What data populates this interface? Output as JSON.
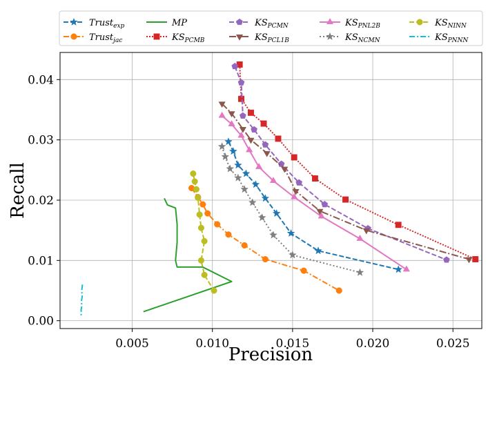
{
  "chart_data": {
    "type": "line",
    "title": "",
    "xlabel": "Precision",
    "ylabel": "Recall",
    "xlim": [
      0.0005,
      0.0268
    ],
    "ylim": [
      -0.0013,
      0.0445
    ],
    "xticks": [
      0.005,
      0.01,
      0.015,
      0.02,
      0.025
    ],
    "xtick_labels": [
      "0.005",
      "0.010",
      "0.015",
      "0.020",
      "0.025"
    ],
    "yticks": [
      0.0,
      0.01,
      0.02,
      0.03,
      0.04
    ],
    "ytick_labels": [
      "0.00",
      "0.01",
      "0.02",
      "0.03",
      "0.04"
    ],
    "grid": true,
    "legend_position": "top",
    "series": [
      {
        "name": "Trust",
        "sub": "exp",
        "color": "#1f77b4",
        "marker": "star",
        "dash": "7,3",
        "x": [
          0.011,
          0.0113,
          0.0116,
          0.0121,
          0.0127,
          0.0133,
          0.014,
          0.0149,
          0.0166,
          0.0216
        ],
        "y": [
          0.0297,
          0.0281,
          0.0258,
          0.0244,
          0.0226,
          0.0203,
          0.0178,
          0.0145,
          0.0116,
          0.0085
        ]
      },
      {
        "name": "Trust",
        "sub": "jac",
        "color": "#ff7f0e",
        "marker": "circle",
        "dash": "8,3,2,3",
        "x": [
          0.0087,
          0.0091,
          0.0094,
          0.0097,
          0.0103,
          0.011,
          0.012,
          0.0133,
          0.0157,
          0.0179
        ],
        "y": [
          0.022,
          0.0205,
          0.0193,
          0.0178,
          0.016,
          0.0143,
          0.0125,
          0.0102,
          0.0083,
          0.005
        ]
      },
      {
        "name": "MP",
        "sub": "",
        "color": "#2ca02c",
        "marker": "none",
        "dash": "",
        "x": [
          0.007,
          0.0072,
          0.0077,
          0.0078,
          0.0078,
          0.0077,
          0.0078,
          0.0094,
          0.0112,
          0.0057
        ],
        "y": [
          0.0203,
          0.0192,
          0.0187,
          0.016,
          0.013,
          0.01,
          0.0089,
          0.0089,
          0.0065,
          0.0015
        ]
      },
      {
        "name": "KS",
        "sub": "PCMB",
        "color": "#d62728",
        "marker": "square",
        "dash": "2,2",
        "x": [
          0.0117,
          0.0118,
          0.0124,
          0.0132,
          0.0141,
          0.0151,
          0.0164,
          0.0183,
          0.0216,
          0.0264
        ],
        "y": [
          0.0425,
          0.0368,
          0.0345,
          0.0327,
          0.0302,
          0.0271,
          0.0236,
          0.0201,
          0.0159,
          0.0102
        ]
      },
      {
        "name": "KS",
        "sub": "PCMN",
        "color": "#9467bd",
        "marker": "pentagon",
        "dash": "7,3",
        "x": [
          0.0114,
          0.0118,
          0.0119,
          0.0126,
          0.0133,
          0.0143,
          0.0154,
          0.017,
          0.0197,
          0.0246
        ],
        "y": [
          0.0422,
          0.0395,
          0.034,
          0.0317,
          0.0292,
          0.026,
          0.0229,
          0.0193,
          0.0153,
          0.0101
        ]
      },
      {
        "name": "KS",
        "sub": "PCL1B",
        "color": "#8c564b",
        "marker": "tri-down",
        "dash": "10,3,2,3",
        "x": [
          0.0106,
          0.0112,
          0.0119,
          0.0124,
          0.0134,
          0.0145,
          0.0152,
          0.0167,
          0.0196,
          0.026
        ],
        "y": [
          0.036,
          0.0344,
          0.0318,
          0.03,
          0.0278,
          0.0252,
          0.0215,
          0.0182,
          0.015,
          0.0102
        ]
      },
      {
        "name": "KS",
        "sub": "PNL2B",
        "color": "#e377c2",
        "marker": "tri-up",
        "dash": "",
        "x": [
          0.0106,
          0.0112,
          0.0118,
          0.0123,
          0.0129,
          0.0138,
          0.0151,
          0.0168,
          0.0192,
          0.0221
        ],
        "y": [
          0.034,
          0.0326,
          0.0307,
          0.0283,
          0.0255,
          0.0232,
          0.0205,
          0.0173,
          0.0136,
          0.0085
        ]
      },
      {
        "name": "KS",
        "sub": "NCMN",
        "color": "#7f7f7f",
        "marker": "star",
        "dash": "2,3",
        "x": [
          0.0106,
          0.0108,
          0.0111,
          0.0116,
          0.012,
          0.0125,
          0.0131,
          0.0138,
          0.015,
          0.0192
        ],
        "y": [
          0.0289,
          0.0272,
          0.0252,
          0.0237,
          0.0218,
          0.0196,
          0.0171,
          0.0142,
          0.0109,
          0.008
        ]
      },
      {
        "name": "KS",
        "sub": "NINN",
        "color": "#bcbd22",
        "marker": "circle",
        "dash": "7,3",
        "x": [
          0.0088,
          0.0089,
          0.009,
          0.0091,
          0.0092,
          0.0093,
          0.0095,
          0.0093,
          0.0095,
          0.0101
        ],
        "y": [
          0.0244,
          0.0231,
          0.0218,
          0.0204,
          0.0176,
          0.0154,
          0.0132,
          0.01,
          0.0076,
          0.005
        ]
      },
      {
        "name": "KS",
        "sub": "PNNN",
        "color": "#17becf",
        "marker": "none",
        "dash": "8,3,2,3",
        "x": [
          0.0019,
          0.00185,
          0.00188,
          0.00183,
          0.00186,
          0.00181,
          0.00183,
          0.0018
        ],
        "y": [
          0.006,
          0.005,
          0.004,
          0.0032,
          0.0025,
          0.0018,
          0.0012,
          0.0008
        ]
      }
    ]
  }
}
